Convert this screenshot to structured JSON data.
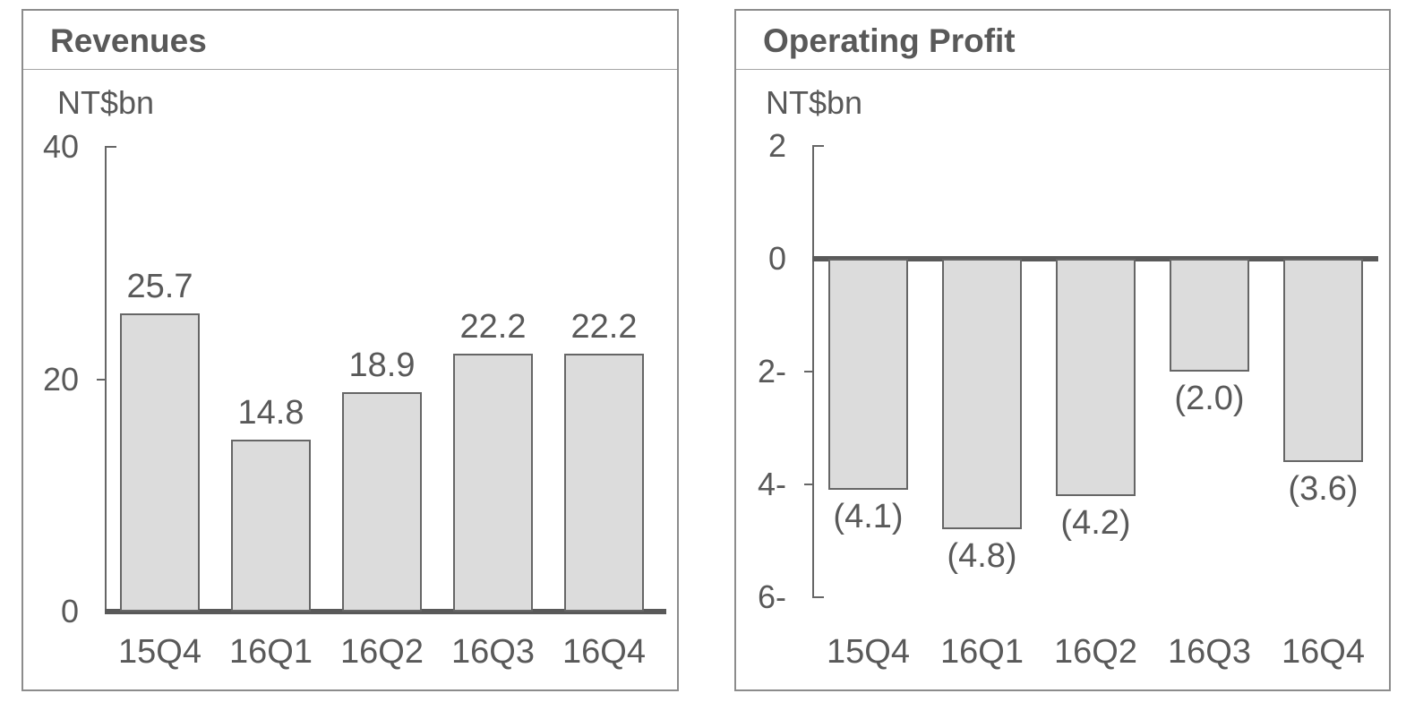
{
  "page": {
    "background": "#ffffff"
  },
  "panels": [
    {
      "title": "Revenues"
    },
    {
      "title": "Operating Profit"
    }
  ],
  "chart_data": [
    {
      "type": "bar",
      "title": "Revenues",
      "ylabel": "NT$bn",
      "xlabel": "",
      "categories": [
        "15Q4",
        "16Q1",
        "16Q2",
        "16Q3",
        "16Q4"
      ],
      "values": [
        25.7,
        14.8,
        18.9,
        22.2,
        22.2
      ],
      "data_labels": [
        "25.7",
        "14.8",
        "18.9",
        "22.2",
        "22.2"
      ],
      "ylim": [
        0,
        40
      ],
      "yticks": [
        {
          "value": 40,
          "label": "40"
        },
        {
          "value": 20,
          "label": "20"
        },
        {
          "value": 0,
          "label": "0"
        }
      ],
      "grid": false,
      "legend": null,
      "bar_fill": "#dcdcdc",
      "bar_border": "#666666",
      "axis_color": "#666666",
      "baseline_color": "#595959",
      "text_color": "#595959"
    },
    {
      "type": "bar",
      "title": "Operating Profit",
      "ylabel": "NT$bn",
      "xlabel": "",
      "categories": [
        "15Q4",
        "16Q1",
        "16Q2",
        "16Q3",
        "16Q4"
      ],
      "values": [
        -4.1,
        -4.8,
        -4.2,
        -2.0,
        -3.6
      ],
      "data_labels": [
        "(4.1)",
        "(4.8)",
        "(4.2)",
        "(2.0)",
        "(3.6)"
      ],
      "ylim": [
        -6,
        2
      ],
      "yticks": [
        {
          "value": 2,
          "label": "2"
        },
        {
          "value": 0,
          "label": "0"
        },
        {
          "value": -2,
          "label": "2-"
        },
        {
          "value": -4,
          "label": "4-"
        },
        {
          "value": -6,
          "label": "6-"
        }
      ],
      "grid": false,
      "legend": null,
      "bar_fill": "#dcdcdc",
      "bar_border": "#666666",
      "axis_color": "#666666",
      "baseline_color": "#595959",
      "text_color": "#595959"
    }
  ]
}
